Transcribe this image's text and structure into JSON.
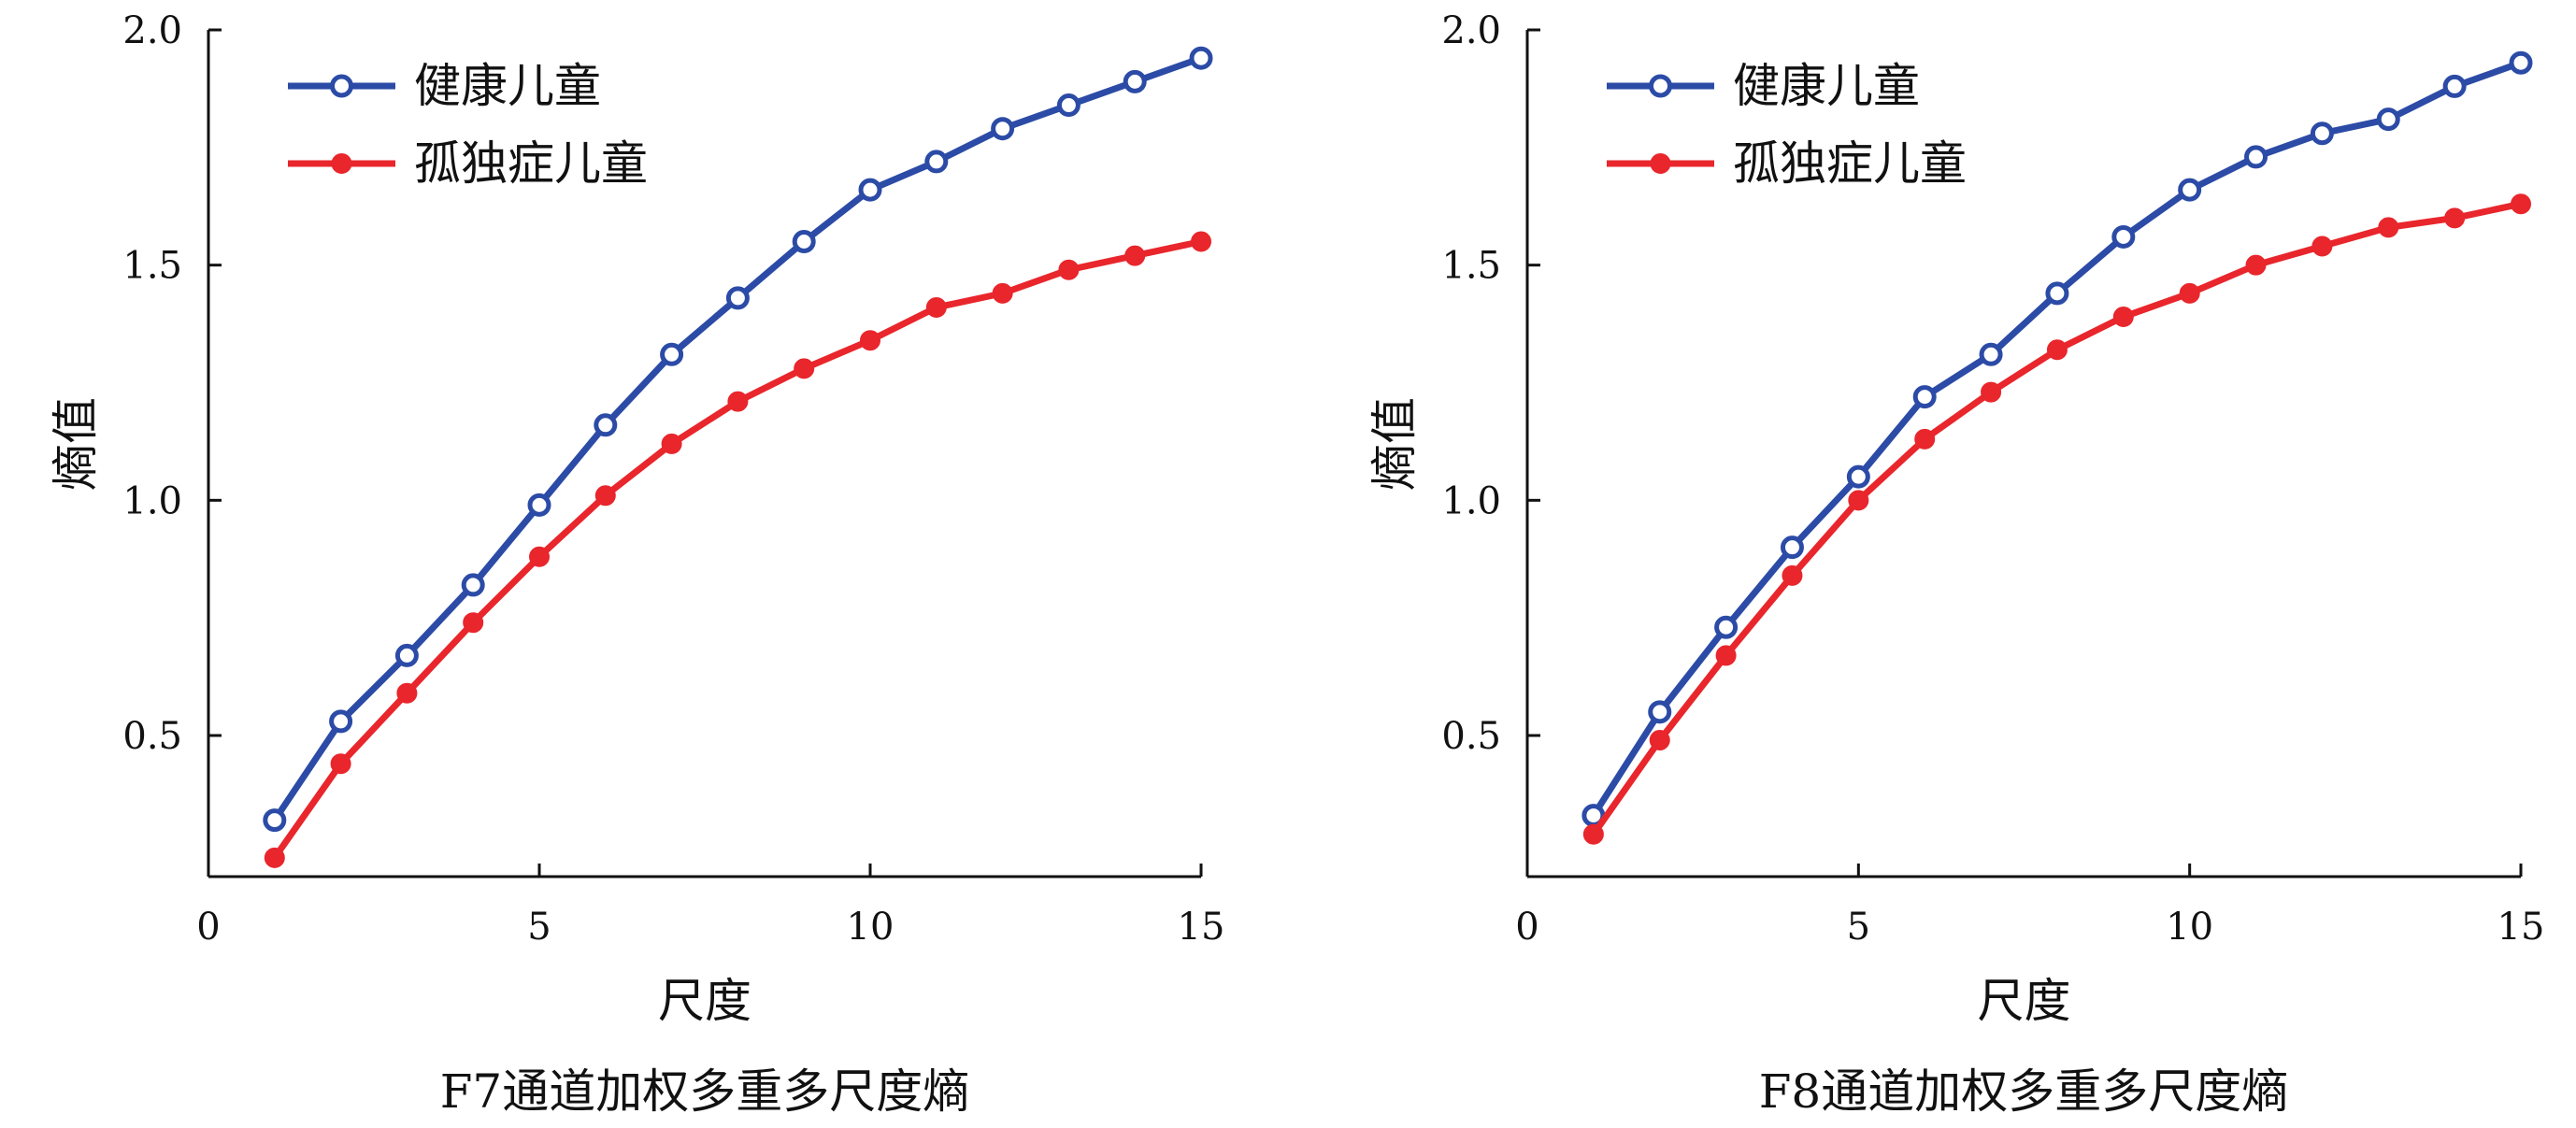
{
  "chart_data": [
    {
      "type": "line",
      "caption": "F7通道加权多重多尺度熵",
      "xlabel": "尺度",
      "ylabel": "熵值",
      "xlim": [
        0,
        15
      ],
      "ylim": [
        0.2,
        2.0
      ],
      "xticks": [
        0,
        5,
        10,
        15
      ],
      "yticks": [
        0.5,
        1.0,
        1.5,
        2.0
      ],
      "legend_position": "top-left",
      "grid": false,
      "x": [
        1,
        2,
        3,
        4,
        5,
        6,
        7,
        8,
        9,
        10,
        11,
        12,
        13,
        14,
        15
      ],
      "series": [
        {
          "name": "健康儿童",
          "color": "#2B4BA6",
          "marker": "open-circle",
          "values": [
            0.32,
            0.53,
            0.67,
            0.82,
            0.99,
            1.16,
            1.31,
            1.43,
            1.55,
            1.66,
            1.72,
            1.79,
            1.84,
            1.89,
            1.94
          ]
        },
        {
          "name": "孤独症儿童",
          "color": "#E8262C",
          "marker": "filled-circle",
          "values": [
            0.24,
            0.44,
            0.59,
            0.74,
            0.88,
            1.01,
            1.12,
            1.21,
            1.28,
            1.34,
            1.41,
            1.44,
            1.49,
            1.52,
            1.55
          ]
        }
      ]
    },
    {
      "type": "line",
      "caption": "F8通道加权多重多尺度熵",
      "xlabel": "尺度",
      "ylabel": "熵值",
      "xlim": [
        0,
        15
      ],
      "ylim": [
        0.2,
        2.0
      ],
      "xticks": [
        0,
        5,
        10,
        15
      ],
      "yticks": [
        0.5,
        1.0,
        1.5,
        2.0
      ],
      "legend_position": "top-left",
      "grid": false,
      "x": [
        1,
        2,
        3,
        4,
        5,
        6,
        7,
        8,
        9,
        10,
        11,
        12,
        13,
        14,
        15
      ],
      "series": [
        {
          "name": "健康儿童",
          "color": "#2B4BA6",
          "marker": "open-circle",
          "values": [
            0.33,
            0.55,
            0.73,
            0.9,
            1.05,
            1.22,
            1.31,
            1.44,
            1.56,
            1.66,
            1.73,
            1.78,
            1.81,
            1.88,
            1.93
          ]
        },
        {
          "name": "孤独症儿童",
          "color": "#E8262C",
          "marker": "filled-circle",
          "values": [
            0.29,
            0.49,
            0.67,
            0.84,
            1.0,
            1.13,
            1.23,
            1.32,
            1.39,
            1.44,
            1.5,
            1.54,
            1.58,
            1.6,
            1.63
          ]
        }
      ]
    }
  ]
}
